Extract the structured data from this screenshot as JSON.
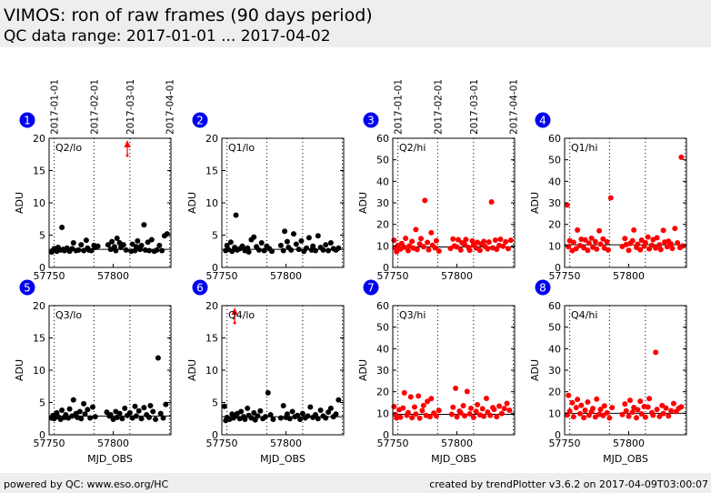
{
  "header": {
    "title": "VIMOS: ron of raw frames (90 days period)",
    "subtitle": "QC data range: 2017-01-01 ... 2017-04-02"
  },
  "footer": {
    "left": "powered by QC: www.eso.org/HC",
    "right": "created by trendPlotter v3.6.2 on 2017-04-09T03:00:07"
  },
  "colors": {
    "lo": "#000000",
    "hi": "#ff0000",
    "badge": "#0000ee",
    "header_bg": "#eeeeee"
  },
  "date_labels": [
    "2017-01-01",
    "2017-02-01",
    "2017-03-01",
    "2017-04-01"
  ],
  "date_mjd": [
    57754,
    57785,
    57813,
    57844
  ],
  "chart_data": [
    {
      "type": "scatter",
      "badge": "1",
      "label": "Q2/lo",
      "color": "#000000",
      "ylim": [
        0,
        20
      ],
      "yticks": [
        0,
        5,
        10,
        15,
        20
      ],
      "xlim": [
        57750,
        57845
      ],
      "xticks": [
        57750,
        57800
      ],
      "xlabel": "",
      "ylabel": "ADU",
      "ref_line": 2.8,
      "outlier_arrow_x": 57811,
      "x": [
        57752,
        57753,
        57754,
        57756,
        57757,
        57759,
        57760,
        57761,
        57762,
        57764,
        57766,
        57768,
        57769,
        57771,
        57773,
        57775,
        57777,
        57779,
        57780,
        57781,
        57783,
        57785,
        57786,
        57788,
        57796,
        57798,
        57799,
        57801,
        57802,
        57803,
        57805,
        57806,
        57808,
        57810,
        57814,
        57815,
        57817,
        57818,
        57819,
        57821,
        57822,
        57824,
        57825,
        57827,
        57828,
        57830,
        57832,
        57834,
        57836,
        57838,
        57840,
        57842
      ],
      "y": [
        2.4,
        2.6,
        2.9,
        2.5,
        3.1,
        2.7,
        6.2,
        2.8,
        2.6,
        3.0,
        2.5,
        2.9,
        3.8,
        2.6,
        2.7,
        3.5,
        2.6,
        4.2,
        3.0,
        2.7,
        2.6,
        3.4,
        3.1,
        3.3,
        3.5,
        2.8,
        4.0,
        3.2,
        2.6,
        4.5,
        3.8,
        3.1,
        3.5,
        2.7,
        2.5,
        3.6,
        2.6,
        3.2,
        4.1,
        2.8,
        3.4,
        6.6,
        2.7,
        3.9,
        2.6,
        4.3,
        2.5,
        2.7,
        3.4,
        2.6,
        4.9,
        5.2
      ]
    },
    {
      "type": "scatter",
      "badge": "2",
      "label": "Q1/lo",
      "color": "#000000",
      "ylim": [
        0,
        20
      ],
      "yticks": [
        0,
        5,
        10,
        15,
        20
      ],
      "xlim": [
        57750,
        57845
      ],
      "xticks": [
        57750,
        57800
      ],
      "xlabel": "",
      "ylabel": "ADU",
      "ref_line": 2.8,
      "x": [
        57753,
        57754,
        57755,
        57757,
        57758,
        57760,
        57761,
        57762,
        57764,
        57766,
        57768,
        57770,
        57771,
        57773,
        57775,
        57777,
        57779,
        57781,
        57783,
        57785,
        57787,
        57789,
        57796,
        57798,
        57799,
        57801,
        57802,
        57804,
        57806,
        57808,
        57810,
        57812,
        57814,
        57816,
        57818,
        57820,
        57821,
        57823,
        57825,
        57827,
        57829,
        57831,
        57833,
        57835,
        57837,
        57839,
        57841
      ],
      "y": [
        2.6,
        3.4,
        2.8,
        3.9,
        2.5,
        3.1,
        8.1,
        2.7,
        2.9,
        3.3,
        2.6,
        3.0,
        2.4,
        4.3,
        4.7,
        3.2,
        2.7,
        3.8,
        2.6,
        3.3,
        2.9,
        2.5,
        3.4,
        2.6,
        5.6,
        4.0,
        3.1,
        2.7,
        5.2,
        3.6,
        2.8,
        4.1,
        2.5,
        3.0,
        4.6,
        2.7,
        3.3,
        2.6,
        4.9,
        3.1,
        2.7,
        3.5,
        2.6,
        3.8,
        2.9,
        2.7,
        3.0
      ]
    },
    {
      "type": "scatter",
      "badge": "3",
      "label": "Q2/hi",
      "color": "#ff0000",
      "ylim": [
        0,
        60
      ],
      "yticks": [
        0,
        10,
        20,
        30,
        40,
        50,
        60
      ],
      "xlim": [
        57750,
        57845
      ],
      "xticks": [
        57750,
        57800
      ],
      "xlabel": "",
      "ylabel": "ADU",
      "ref_line": 9.5,
      "x": [
        57751,
        57752,
        57753,
        57754,
        57756,
        57757,
        57759,
        57760,
        57762,
        57763,
        57765,
        57766,
        57768,
        57769,
        57771,
        57772,
        57774,
        57775,
        57777,
        57778,
        57780,
        57781,
        57783,
        57784,
        57786,
        57795,
        57797,
        57798,
        57800,
        57801,
        57803,
        57804,
        57806,
        57807,
        57809,
        57810,
        57812,
        57813,
        57815,
        57816,
        57818,
        57819,
        57821,
        57822,
        57824,
        57825,
        57827,
        57828,
        57830,
        57831,
        57833,
        57834,
        57836,
        57838,
        57840,
        57842
      ],
      "y": [
        12.6,
        9.1,
        7.3,
        10.2,
        8.5,
        11.1,
        9.4,
        13.5,
        7.8,
        10.0,
        12.1,
        9.0,
        17.6,
        8.3,
        10.9,
        13.4,
        9.6,
        31.1,
        11.6,
        8.2,
        16.1,
        10.3,
        9.1,
        12.4,
        7.6,
        8.8,
        13.2,
        10.0,
        9.5,
        12.9,
        8.1,
        11.4,
        10.7,
        13.0,
        9.3,
        8.0,
        12.3,
        10.4,
        9.0,
        11.6,
        7.9,
        10.9,
        12.1,
        9.7,
        8.6,
        11.8,
        30.4,
        9.1,
        12.7,
        8.4,
        10.2,
        13.1,
        9.8,
        11.9,
        8.7,
        12.6
      ]
    },
    {
      "type": "scatter",
      "badge": "4",
      "label": "Q1/hi",
      "color": "#ff0000",
      "ylim": [
        0,
        60
      ],
      "yticks": [
        0,
        10,
        20,
        30,
        40,
        50,
        60
      ],
      "xlim": [
        57750,
        57845
      ],
      "xticks": [
        57750,
        57800
      ],
      "xlabel": "",
      "ylabel": "ADU",
      "ref_line": 10.5,
      "x": [
        57752,
        57753,
        57754,
        57756,
        57757,
        57759,
        57760,
        57762,
        57763,
        57765,
        57766,
        57768,
        57769,
        57771,
        57772,
        57774,
        57775,
        57777,
        57778,
        57780,
        57781,
        57783,
        57784,
        57786,
        57795,
        57797,
        57798,
        57800,
        57801,
        57803,
        57804,
        57806,
        57807,
        57809,
        57810,
        57812,
        57813,
        57815,
        57816,
        57818,
        57819,
        57821,
        57822,
        57824,
        57825,
        57827,
        57828,
        57830,
        57831,
        57833,
        57834,
        57836,
        57838,
        57840,
        57841,
        57842
      ],
      "y": [
        29.0,
        9.6,
        12.4,
        7.8,
        11.6,
        8.7,
        17.4,
        10.2,
        13.1,
        9.1,
        12.8,
        7.9,
        11.3,
        13.6,
        9.4,
        12.0,
        8.5,
        17.0,
        10.8,
        13.2,
        9.0,
        11.9,
        8.1,
        32.3,
        9.7,
        13.4,
        10.6,
        7.9,
        11.1,
        12.4,
        17.4,
        9.3,
        10.8,
        8.2,
        12.7,
        9.9,
        11.5,
        14.1,
        8.6,
        10.3,
        12.9,
        9.0,
        13.8,
        10.5,
        8.3,
        17.2,
        11.8,
        9.6,
        12.2,
        10.9,
        8.8,
        18.1,
        11.4,
        9.2,
        51.2,
        10.0
      ]
    },
    {
      "type": "scatter",
      "badge": "5",
      "label": "Q3/lo",
      "color": "#000000",
      "ylim": [
        0,
        20
      ],
      "yticks": [
        0,
        5,
        10,
        15,
        20
      ],
      "xlim": [
        57750,
        57845
      ],
      "xticks": [
        57750,
        57800
      ],
      "xlabel": "MJD_OBS",
      "ylabel": "ADU",
      "ref_line": 2.9,
      "x": [
        57752,
        57753,
        57754,
        57756,
        57757,
        57759,
        57760,
        57762,
        57763,
        57765,
        57766,
        57768,
        57769,
        57771,
        57772,
        57774,
        57775,
        57777,
        57778,
        57780,
        57782,
        57784,
        57786,
        57795,
        57797,
        57798,
        57800,
        57802,
        57803,
        57805,
        57807,
        57809,
        57811,
        57813,
        57815,
        57817,
        57818,
        57820,
        57822,
        57824,
        57826,
        57828,
        57829,
        57831,
        57833,
        57835,
        57837,
        57839,
        57841
      ],
      "y": [
        2.6,
        3.0,
        2.5,
        3.4,
        2.8,
        2.4,
        3.8,
        2.7,
        3.1,
        2.6,
        4.0,
        2.9,
        5.4,
        3.3,
        2.7,
        3.6,
        2.5,
        4.8,
        3.2,
        3.9,
        2.6,
        4.3,
        2.8,
        3.5,
        2.9,
        3.1,
        2.4,
        3.6,
        2.7,
        3.3,
        2.5,
        4.1,
        3.0,
        3.4,
        2.6,
        4.4,
        2.9,
        3.7,
        2.5,
        4.2,
        3.1,
        2.7,
        4.5,
        3.6,
        2.4,
        11.9,
        3.3,
        2.6,
        4.7
      ]
    },
    {
      "type": "scatter",
      "badge": "6",
      "label": "Q4/lo",
      "color": "#000000",
      "ylim": [
        0,
        20
      ],
      "yticks": [
        0,
        5,
        10,
        15,
        20
      ],
      "xlim": [
        57750,
        57845
      ],
      "xticks": [
        57750,
        57800
      ],
      "xlabel": "MJD_OBS",
      "ylabel": "ADU",
      "ref_line": 2.8,
      "outlier_arrow_x": 57760,
      "x": [
        57752,
        57753,
        57754,
        57756,
        57758,
        57759,
        57761,
        57762,
        57764,
        57765,
        57767,
        57768,
        57770,
        57771,
        57773,
        57775,
        57776,
        57778,
        57780,
        57782,
        57784,
        57786,
        57788,
        57790,
        57796,
        57798,
        57800,
        57801,
        57803,
        57805,
        57807,
        57809,
        57811,
        57813,
        57815,
        57817,
        57819,
        57821,
        57823,
        57825,
        57827,
        57829,
        57831,
        57833,
        57835,
        57837,
        57839,
        57841
      ],
      "y": [
        4.4,
        2.2,
        2.7,
        2.4,
        3.2,
        2.6,
        2.9,
        3.3,
        2.5,
        3.6,
        2.8,
        2.4,
        4.1,
        3.0,
        2.6,
        3.4,
        2.3,
        2.9,
        3.7,
        2.5,
        2.8,
        6.5,
        3.1,
        2.4,
        2.6,
        4.5,
        2.7,
        3.2,
        2.5,
        3.6,
        2.8,
        3.0,
        2.4,
        3.3,
        2.6,
        2.9,
        4.3,
        2.7,
        3.1,
        2.5,
        3.8,
        2.9,
        2.6,
        3.5,
        4.1,
        2.8,
        3.2,
        5.4
      ]
    },
    {
      "type": "scatter",
      "badge": "7",
      "label": "Q3/hi",
      "color": "#ff0000",
      "ylim": [
        0,
        60
      ],
      "yticks": [
        0,
        10,
        20,
        30,
        40,
        50,
        60
      ],
      "xlim": [
        57750,
        57845
      ],
      "xticks": [
        57750,
        57800
      ],
      "xlabel": "MJD_OBS",
      "ylabel": "ADU",
      "ref_line": 9.5,
      "x": [
        57751,
        57752,
        57753,
        57755,
        57756,
        57758,
        57759,
        57761,
        57762,
        57764,
        57765,
        57767,
        57768,
        57770,
        57771,
        57773,
        57774,
        57776,
        57777,
        57779,
        57780,
        57782,
        57784,
        57786,
        57796,
        57797,
        57799,
        57800,
        57802,
        57803,
        57805,
        57806,
        57808,
        57810,
        57811,
        57813,
        57815,
        57816,
        57818,
        57820,
        57821,
        57823,
        57824,
        57826,
        57828,
        57829,
        57831,
        57833,
        57835,
        57837,
        57839,
        57841
      ],
      "y": [
        13.1,
        9.4,
        7.8,
        11.6,
        8.2,
        12.4,
        19.5,
        9.1,
        10.3,
        17.6,
        8.0,
        12.9,
        9.6,
        18.0,
        7.7,
        11.2,
        13.6,
        9.0,
        15.5,
        8.4,
        16.8,
        10.1,
        8.7,
        11.3,
        9.5,
        12.8,
        21.6,
        8.3,
        11.0,
        10.2,
        13.5,
        8.8,
        20.1,
        9.7,
        12.3,
        8.1,
        10.9,
        14.0,
        9.2,
        12.1,
        8.6,
        16.9,
        10.5,
        9.0,
        12.6,
        11.8,
        8.4,
        13.3,
        9.9,
        12.2,
        14.6,
        11.4
      ]
    },
    {
      "type": "scatter",
      "badge": "8",
      "label": "Q4/hi",
      "color": "#ff0000",
      "ylim": [
        0,
        60
      ],
      "yticks": [
        0,
        10,
        20,
        30,
        40,
        50,
        60
      ],
      "xlim": [
        57750,
        57845
      ],
      "xticks": [
        57750,
        57800
      ],
      "xlabel": "MJD_OBS",
      "ylabel": "ADU",
      "ref_line": 10.0,
      "x": [
        57752,
        57753,
        57754,
        57756,
        57757,
        57759,
        57760,
        57762,
        57763,
        57765,
        57766,
        57768,
        57769,
        57771,
        57772,
        57774,
        57775,
        57777,
        57778,
        57780,
        57781,
        57783,
        57785,
        57787,
        57795,
        57797,
        57798,
        57800,
        57801,
        57803,
        57804,
        57806,
        57807,
        57809,
        57810,
        57812,
        57813,
        57815,
        57816,
        57818,
        57819,
        57821,
        57822,
        57824,
        57826,
        57827,
        57829,
        57831,
        57833,
        57835,
        57837,
        57839,
        57841
      ],
      "y": [
        9.2,
        18.3,
        11.0,
        14.9,
        8.4,
        12.6,
        16.4,
        9.8,
        13.7,
        8.0,
        11.4,
        15.2,
        9.1,
        10.7,
        12.2,
        8.3,
        16.6,
        9.5,
        11.8,
        8.9,
        13.4,
        10.2,
        7.8,
        12.6,
        9.4,
        14.3,
        11.1,
        8.6,
        16.0,
        10.5,
        12.7,
        7.9,
        11.6,
        15.6,
        9.7,
        13.1,
        8.2,
        12.9,
        16.8,
        10.3,
        9.1,
        38.3,
        11.8,
        8.5,
        13.6,
        9.9,
        12.4,
        8.7,
        11.2,
        14.5,
        10.8,
        12.3,
        13.0
      ]
    }
  ]
}
